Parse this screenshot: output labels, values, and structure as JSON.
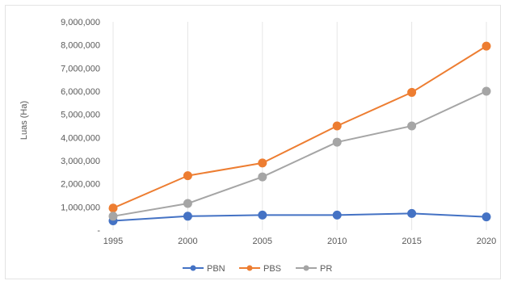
{
  "chart_data": {
    "type": "line",
    "title": "",
    "xlabel": "",
    "ylabel": "Luas (Ha)",
    "x": [
      "1995",
      "2000",
      "2005",
      "2010",
      "2015",
      "2020"
    ],
    "ylim": [
      0,
      9000000
    ],
    "yticks": [
      0,
      1000000,
      2000000,
      3000000,
      4000000,
      5000000,
      6000000,
      7000000,
      8000000,
      9000000
    ],
    "ytick_labels": [
      "-",
      "1,000,000",
      "2,000,000",
      "3,000,000",
      "4,000,000",
      "5,000,000",
      "6,000,000",
      "7,000,000",
      "8,000,000",
      "9,000,000"
    ],
    "grid": "vertical",
    "legend_position": "bottom",
    "series": [
      {
        "name": "PBN",
        "color": "#4472c4",
        "values": [
          400000,
          600000,
          650000,
          650000,
          720000,
          570000
        ]
      },
      {
        "name": "PBS",
        "color": "#ed7d31",
        "values": [
          950000,
          2350000,
          2900000,
          4500000,
          5950000,
          7950000
        ]
      },
      {
        "name": "PR",
        "color": "#a5a5a5",
        "values": [
          600000,
          1150000,
          2300000,
          3800000,
          4500000,
          6000000
        ]
      }
    ]
  }
}
